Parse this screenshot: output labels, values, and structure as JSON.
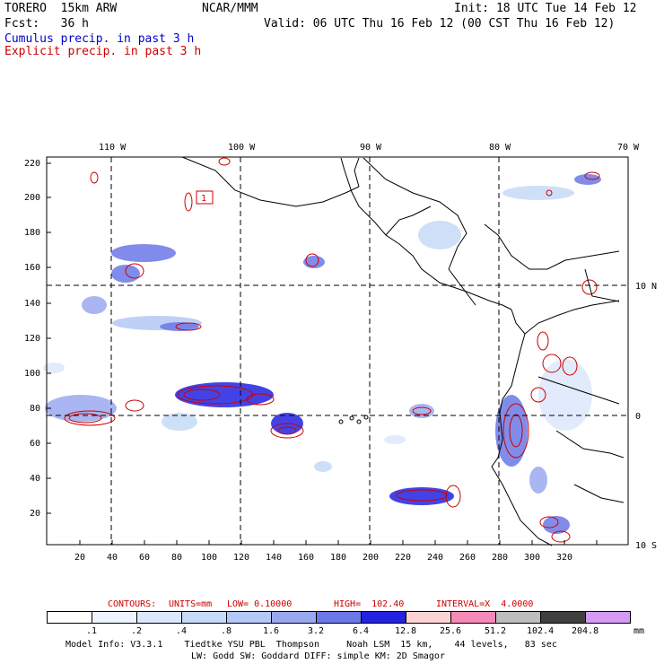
{
  "header": {
    "model": "TORERO  15km ARW",
    "org": "NCAR/MMM",
    "init": "Init: 18 UTC Tue 14 Feb 12",
    "fcst": "Fcst:   36 h",
    "valid": "Valid: 06 UTC Thu 16 Feb 12 (00 CST Thu 16 Feb 12)",
    "line_cumulus": "Cumulus precip. in past 3 h",
    "line_explicit": "Explicit precip. in past 3 h"
  },
  "colors": {
    "cumulus": "#0000cc",
    "explicit": "#cc0000"
  },
  "axes": {
    "top_lon_labels": [
      "110 W",
      "100 W",
      "90 W",
      "80 W",
      "70 W"
    ],
    "right_lat_labels": [
      "10 N",
      "0",
      "10 S"
    ],
    "left_ticks": [
      "220",
      "200",
      "180",
      "160",
      "140",
      "120",
      "100",
      "80",
      "60",
      "40",
      "20"
    ],
    "bottom_ticks": [
      "20",
      "40",
      "60",
      "80",
      "100",
      "120",
      "140",
      "160",
      "180",
      "200",
      "220",
      "240",
      "260",
      "280",
      "300",
      "320"
    ]
  },
  "contours": {
    "label": "CONTOURS:",
    "units": "UNITS=mm",
    "low": "LOW= 0.10000",
    "high": "HIGH=  102.40",
    "interval": "INTERVAL=X  4.0000",
    "contour_label_sample": "1"
  },
  "legend": {
    "unit": "mm",
    "thresholds": [
      ".1",
      ".2",
      ".4",
      ".8",
      "1.6",
      "3.2",
      "6.4",
      "12.8",
      "25.6",
      "51.2",
      "102.4",
      "204.8"
    ],
    "colors": [
      "#ffffff",
      "#eef4fd",
      "#dce8fb",
      "#c6dbf7",
      "#b3c8f5",
      "#9aa9ef",
      "#6b78e6",
      "#2222e0",
      "#fcd3d3",
      "#f58ab8",
      "#bdbdbd",
      "#404040",
      "#d69af5"
    ]
  },
  "footer": {
    "line1": "Model Info: V3.3.1    Tiedtke YSU PBL  Thompson     Noah LSM  15 km,    44 levels,   83 sec",
    "line2": "LW: Godd SW: Goddard DIFF: simple KM: 2D Smagor"
  }
}
